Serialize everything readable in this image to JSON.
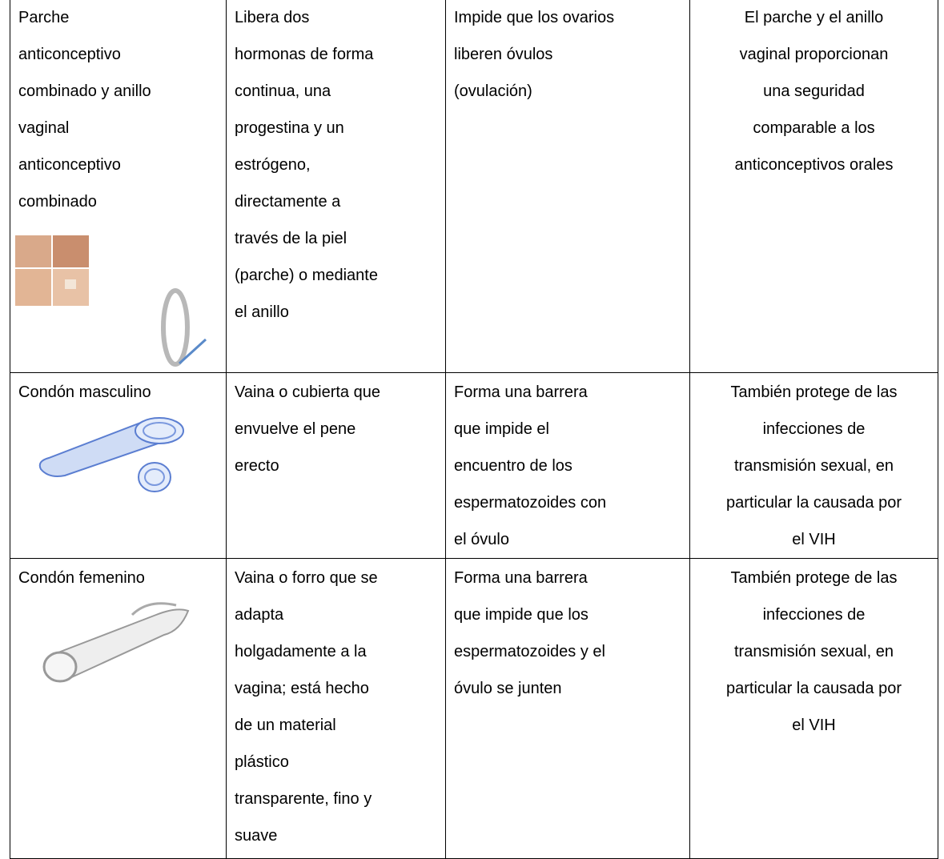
{
  "table": {
    "rows": [
      {
        "cells": [
          {
            "lines": [
              "Parche",
              "anticonceptivo",
              "combinado y anillo",
              "vaginal",
              "anticonceptivo",
              "combinado"
            ]
          },
          {
            "lines": [
              "Libera dos",
              "hormonas de forma",
              "continua, una",
              "progestina y un",
              "estrógeno,",
              "directamente a",
              "través de la piel",
              "(parche) o mediante",
              "el anillo"
            ]
          },
          {
            "lines": [
              "Impide que los ovarios",
              "liberen óvulos",
              "(ovulación)"
            ]
          },
          {
            "lines": [
              "El parche y el anillo",
              "vaginal proporcionan",
              "una seguridad",
              "comparable a los",
              "anticonceptivos orales"
            ]
          }
        ]
      },
      {
        "cells": [
          {
            "lines": [
              "Condón masculino"
            ]
          },
          {
            "lines": [
              "Vaina o cubierta que",
              "envuelve el pene",
              "erecto"
            ]
          },
          {
            "lines": [
              "Forma una barrera",
              "que impide el",
              "encuentro de los",
              "espermatozoides con",
              "el óvulo"
            ]
          },
          {
            "lines": [
              "También protege de las",
              "infecciones de",
              "transmisión sexual, en",
              "particular la causada por",
              "el VIH"
            ]
          }
        ]
      },
      {
        "cells": [
          {
            "lines": [
              "Condón femenino"
            ]
          },
          {
            "lines": [
              "Vaina o forro que se",
              "adapta",
              "holgadamente a la",
              "vagina; está hecho",
              "de un material",
              "plástico",
              "transparente, fino y",
              "suave"
            ]
          },
          {
            "lines": [
              "Forma una barrera",
              "que impide que los",
              "espermatozoides y el",
              "óvulo se junten"
            ]
          },
          {
            "lines": [
              "También protege de las",
              "infecciones de",
              "transmisión sexual, en",
              "particular la causada por",
              "el VIH"
            ]
          }
        ]
      }
    ]
  }
}
